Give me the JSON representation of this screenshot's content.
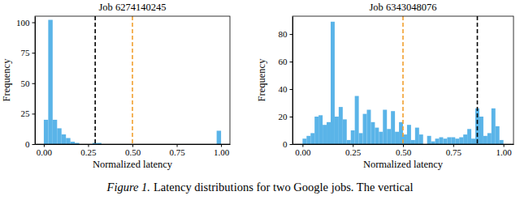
{
  "chart_data": [
    {
      "type": "histogram",
      "title": "Job 6274140245",
      "x_label": "Normalized latency",
      "y_label": "Frequency",
      "color": "#5ab4e8",
      "bins": [
        0,
        0.025,
        0.05,
        0.075,
        0.1,
        0.125,
        0.15,
        0.175,
        0.2,
        0.225,
        0.25,
        0.275,
        0.3,
        0.325,
        0.35,
        0.375,
        0.4,
        0.425,
        0.45,
        0.475,
        0.5,
        0.525,
        0.55,
        0.575,
        0.6,
        0.625,
        0.65,
        0.675,
        0.7,
        0.725,
        0.75,
        0.775,
        0.8,
        0.825,
        0.85,
        0.875,
        0.9,
        0.925,
        0.95,
        0.975,
        1
      ],
      "values": [
        20,
        102,
        20,
        13,
        8,
        5,
        2,
        1,
        0,
        0,
        0,
        1,
        1,
        0,
        0,
        0,
        0,
        0,
        0,
        0,
        0,
        0,
        0,
        0,
        0,
        0,
        0,
        0,
        0,
        0,
        0,
        0,
        0,
        0,
        0,
        0,
        0,
        0,
        0,
        11
      ],
      "vlines": [
        {
          "value": 0.29,
          "color": "#000000",
          "line_style": "dashed"
        },
        {
          "value": 0.5,
          "color": "#f0a030",
          "line_style": "dashed"
        }
      ],
      "xlim": [
        -0.05,
        1.05
      ],
      "ylim": [
        0,
        105
      ],
      "xticks": [
        {
          "value": 0,
          "label": "0.00"
        },
        {
          "value": 0.25,
          "label": "0.25"
        },
        {
          "value": 0.5,
          "label": "0.50"
        },
        {
          "value": 0.75,
          "label": "0.75"
        },
        {
          "value": 1,
          "label": "1.00"
        }
      ],
      "yticks": [
        0,
        25,
        50,
        75,
        100
      ]
    },
    {
      "type": "histogram",
      "title": "Job 6343048076",
      "x_label": "Normalized latency",
      "y_label": "Frequency",
      "color": "#5ab4e8",
      "bins": [
        0,
        0.02,
        0.04,
        0.06,
        0.08,
        0.1,
        0.12,
        0.14,
        0.16,
        0.18,
        0.2,
        0.22,
        0.24,
        0.26,
        0.28,
        0.3,
        0.32,
        0.34,
        0.36,
        0.38,
        0.4,
        0.42,
        0.44,
        0.46,
        0.48,
        0.5,
        0.52,
        0.54,
        0.56,
        0.58,
        0.6,
        0.62,
        0.64,
        0.66,
        0.68,
        0.7,
        0.72,
        0.74,
        0.76,
        0.78,
        0.8,
        0.82,
        0.84,
        0.86,
        0.88,
        0.9,
        0.92,
        0.94,
        0.96,
        0.98,
        1
      ],
      "values": [
        4,
        6,
        8,
        20,
        21,
        14,
        16,
        89,
        20,
        27,
        18,
        3,
        10,
        35,
        8,
        22,
        25,
        16,
        12,
        9,
        25,
        11,
        24,
        9,
        16,
        7,
        14,
        3,
        12,
        7,
        0,
        6,
        2,
        4,
        5,
        4,
        5,
        5,
        4,
        5,
        7,
        11,
        4,
        26,
        20,
        6,
        8,
        26,
        13,
        3
      ],
      "vlines": [
        {
          "value": 0.5,
          "color": "#f0a030",
          "line_style": "dashed"
        },
        {
          "value": 0.87,
          "color": "#000000",
          "line_style": "dashed"
        }
      ],
      "xlim": [
        -0.05,
        1.05
      ],
      "ylim": [
        0,
        93
      ],
      "xticks": [
        {
          "value": 0,
          "label": "0.00"
        },
        {
          "value": 0.25,
          "label": "0.25"
        },
        {
          "value": 0.5,
          "label": "0.50"
        },
        {
          "value": 0.75,
          "label": "0.75"
        },
        {
          "value": 1,
          "label": "1.00"
        }
      ],
      "yticks": [
        0,
        20,
        40,
        60,
        80
      ]
    }
  ],
  "caption": {
    "label": "Figure 1.",
    "text": "Latency distributions for two Google jobs. The vertical"
  }
}
